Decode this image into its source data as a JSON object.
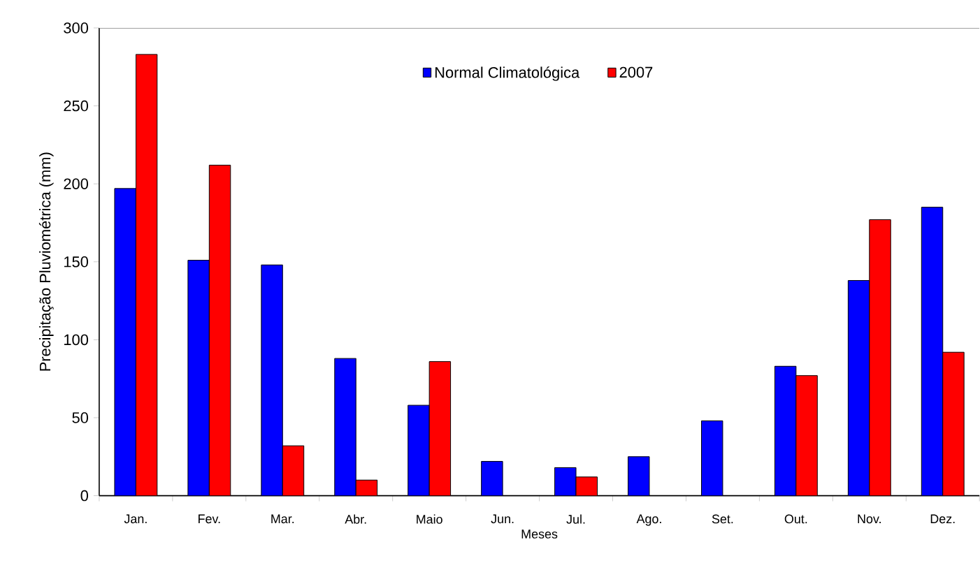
{
  "chart_data": {
    "type": "bar",
    "xlabel": "Meses",
    "ylabel": "Precipitação Pluviométrica (mm)",
    "categories": [
      "Jan.",
      "Fev.",
      "Mar.",
      "Abr.",
      "Maio",
      "Jun.",
      "Jul.",
      "Ago.",
      "Set.",
      "Out.",
      "Nov.",
      "Dez."
    ],
    "series": [
      {
        "name": "Normal Climatológica",
        "color": "#0000ff",
        "values": [
          197,
          151,
          148,
          88,
          58,
          22,
          18,
          25,
          48,
          83,
          138,
          185
        ]
      },
      {
        "name": "2007",
        "color": "#ff0000",
        "values": [
          283,
          212,
          32,
          10,
          86,
          null,
          12,
          null,
          null,
          77,
          177,
          92
        ]
      }
    ],
    "ylim": [
      0,
      300
    ],
    "yticks": [
      0,
      50,
      100,
      150,
      200,
      250,
      300
    ],
    "grid": false,
    "legend": "top"
  }
}
